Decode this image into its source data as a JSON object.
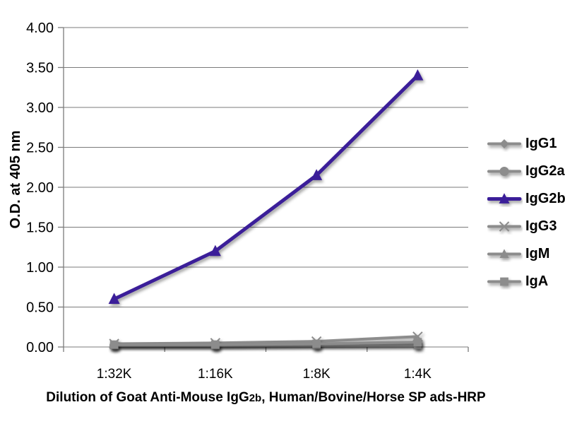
{
  "figure": {
    "background": "#ffffff",
    "accent_color": "#3b1e99",
    "muted_series_color": "#8c8c8c",
    "grid_color": "#7b7b7b",
    "text_color": "#000000"
  },
  "chart_data": {
    "type": "line",
    "title": "",
    "ylabel": "O.D. at 405 nm",
    "xlabel_parts": {
      "prefix": "Dilution of Goat Anti-Mouse IgG",
      "subscript": "2b",
      "suffix": ", Human/Bovine/Horse SP ads-HRP"
    },
    "xlabel_full": "Dilution of Goat Anti-Mouse IgG2b, Human/Bovine/Horse SP ads-HRP",
    "categories": [
      "1:32K",
      "1:16K",
      "1:8K",
      "1:4K"
    ],
    "ylim": [
      0,
      4
    ],
    "ytick_step": 0.5,
    "ytick_labels": [
      "0.00",
      "0.50",
      "1.00",
      "1.50",
      "2.00",
      "2.50",
      "3.00",
      "3.50",
      "4.00"
    ],
    "grid": "horizontal",
    "legend_position": "right",
    "series": [
      {
        "name": "IgG1",
        "marker": "diamond",
        "color": "#8c8c8c",
        "emphasis": false,
        "values": [
          0.02,
          0.02,
          0.03,
          0.04
        ]
      },
      {
        "name": "IgG2a",
        "marker": "circle",
        "color": "#8c8c8c",
        "emphasis": false,
        "values": [
          0.02,
          0.02,
          0.03,
          0.03
        ]
      },
      {
        "name": "IgG2b",
        "marker": "triangle",
        "color": "#3b1e99",
        "emphasis": true,
        "values": [
          0.6,
          1.2,
          2.15,
          3.4
        ]
      },
      {
        "name": "IgG3",
        "marker": "x",
        "color": "#8c8c8c",
        "emphasis": false,
        "values": [
          0.04,
          0.05,
          0.07,
          0.13
        ]
      },
      {
        "name": "IgM",
        "marker": "triangle",
        "color": "#8c8c8c",
        "emphasis": false,
        "values": [
          0.02,
          0.02,
          0.02,
          0.02
        ]
      },
      {
        "name": "IgA",
        "marker": "square",
        "color": "#8c8c8c",
        "emphasis": false,
        "values": [
          0.03,
          0.03,
          0.04,
          0.06
        ]
      }
    ]
  }
}
